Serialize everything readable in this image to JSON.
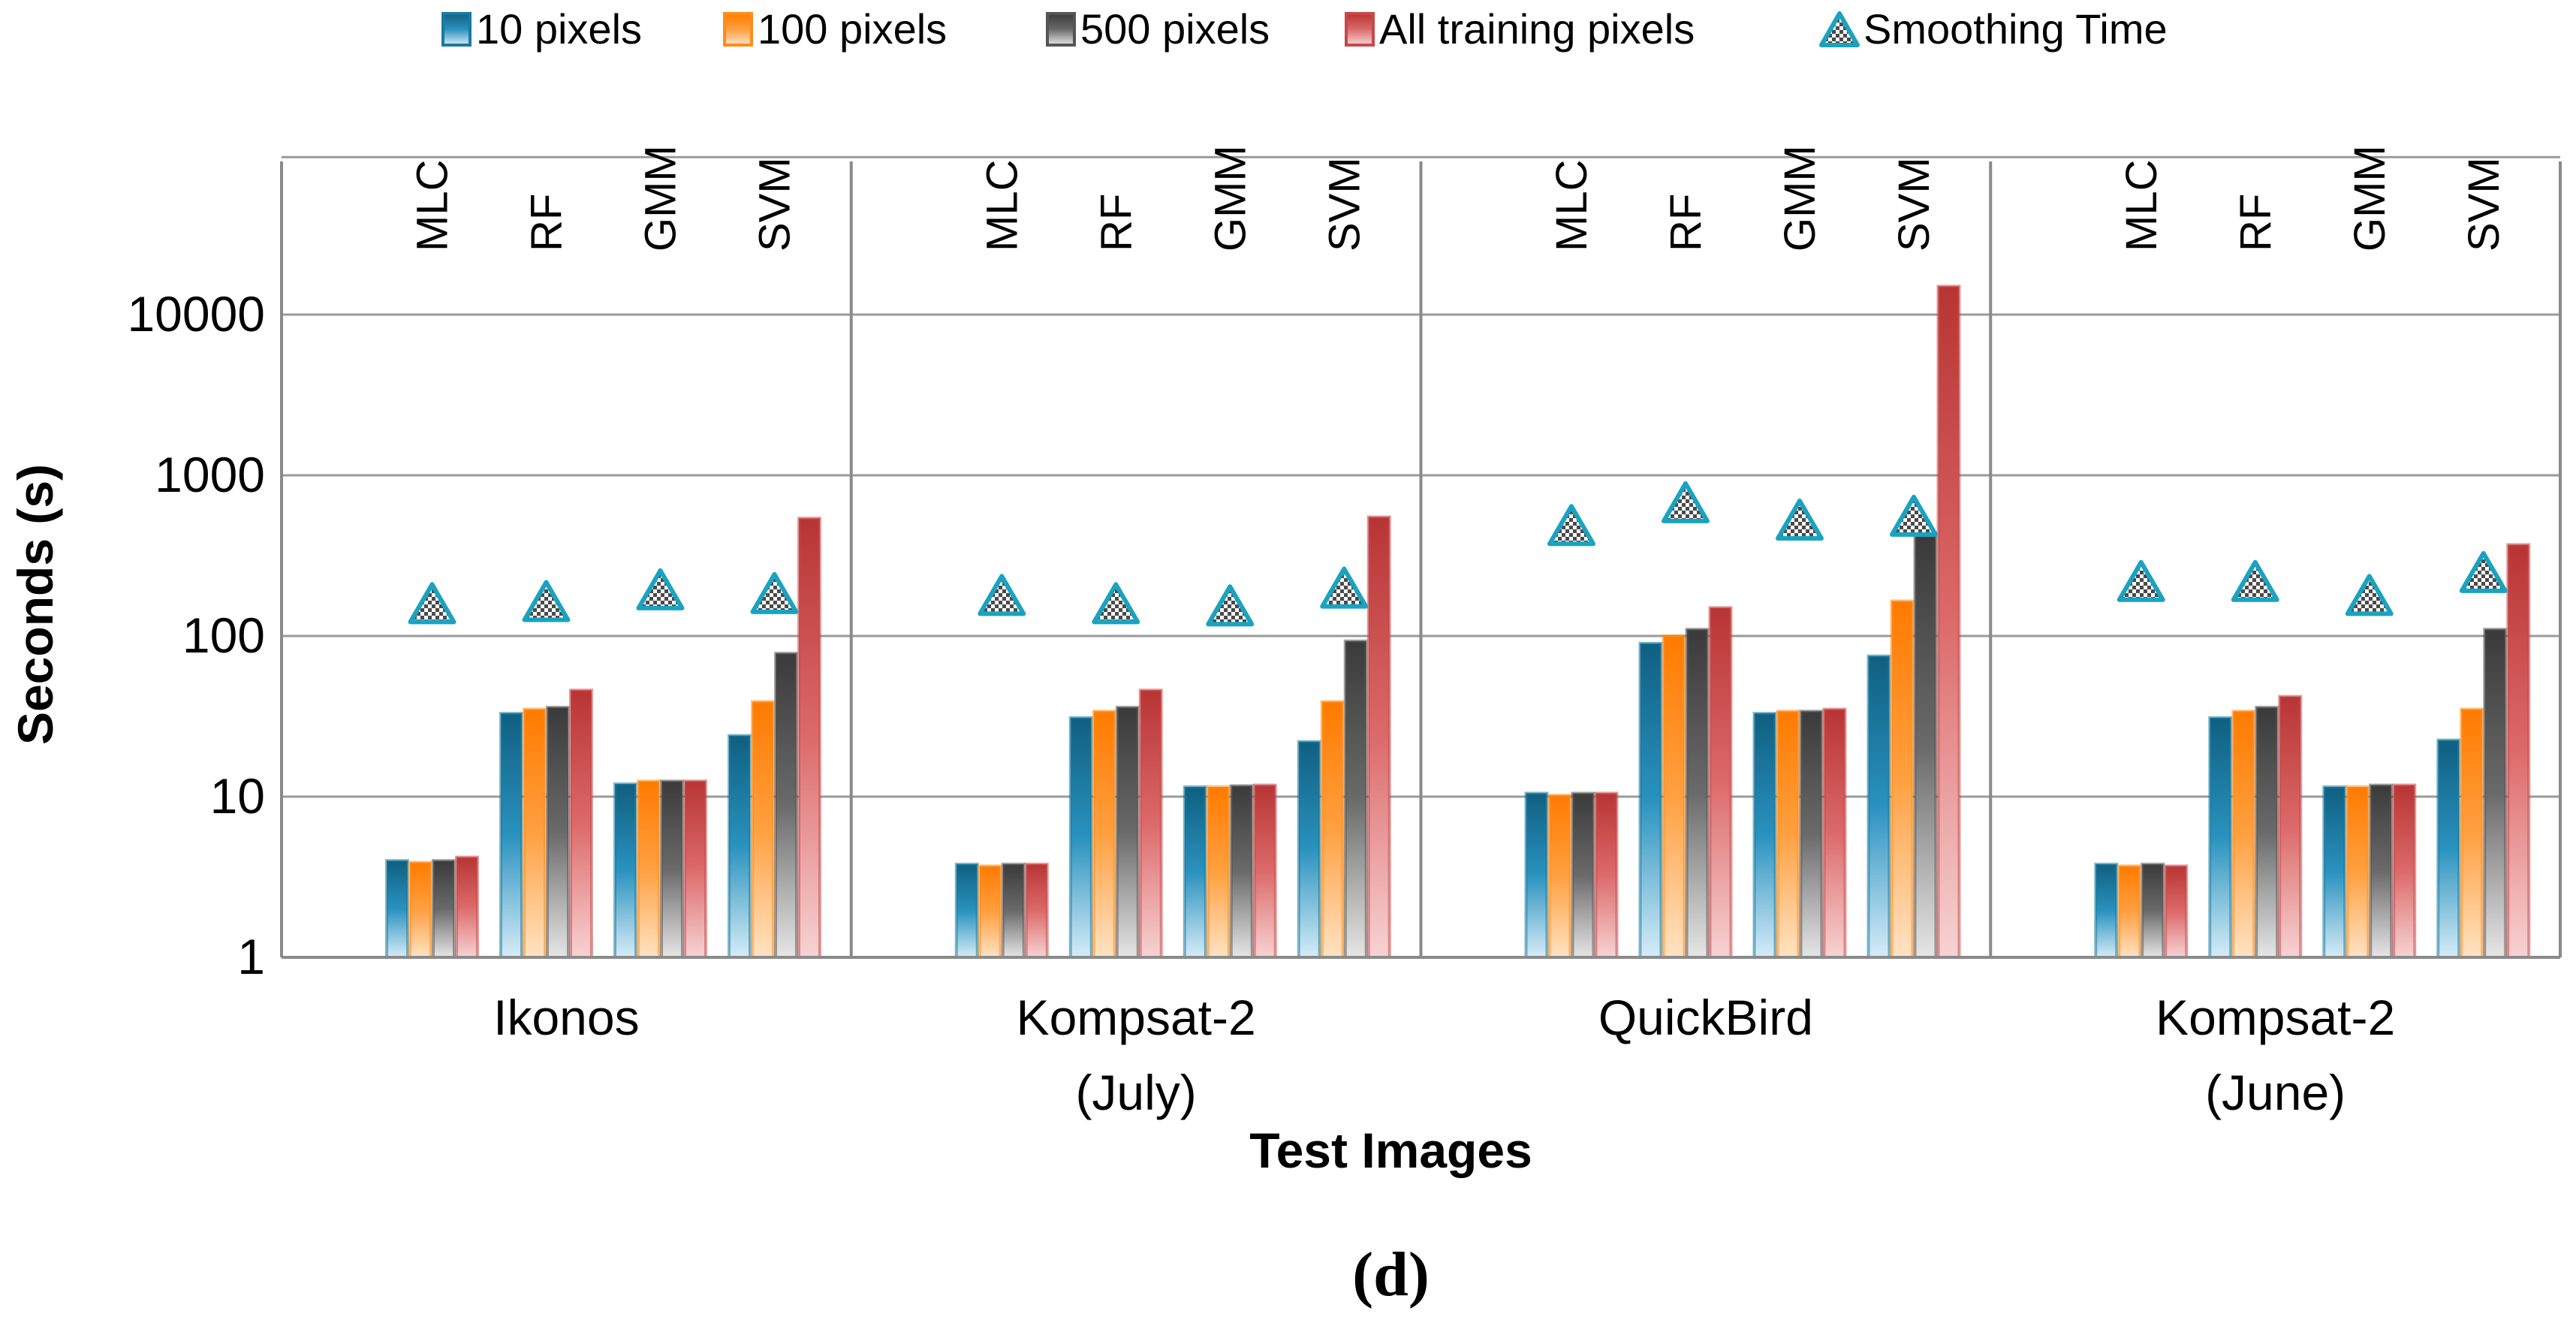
{
  "chart_data": {
    "type": "bar",
    "y_scale": "log",
    "ylim": [
      1,
      100000
    ],
    "yticks": [
      "1",
      "10",
      "100",
      "1000",
      "10000"
    ],
    "ylabel": "Seconds (s)",
    "xlabel": "Test Images",
    "caption": "(d)",
    "groups": [
      {
        "label_lines": [
          "Ikonos"
        ]
      },
      {
        "label_lines": [
          "Kompsat-2",
          "(July)"
        ]
      },
      {
        "label_lines": [
          "QuickBird"
        ]
      },
      {
        "label_lines": [
          "Kompsat-2",
          "(June)"
        ]
      }
    ],
    "methods": [
      "MLC",
      "RF",
      "GMM",
      "SVM"
    ],
    "series": [
      {
        "name": "10 pixels",
        "color": "#1a7a9e",
        "values": [
          [
            4,
            33,
            12,
            24
          ],
          [
            3.8,
            31,
            11.5,
            22
          ],
          [
            10.5,
            90,
            33,
            75
          ],
          [
            3.8,
            31,
            11.5,
            22.5
          ]
        ]
      },
      {
        "name": "100 pixels",
        "color": "#ff8c1a",
        "values": [
          [
            3.9,
            35,
            12.5,
            39
          ],
          [
            3.7,
            34,
            11.5,
            39
          ],
          [
            10.2,
            100,
            34,
            165
          ],
          [
            3.7,
            34,
            11.5,
            35
          ]
        ]
      },
      {
        "name": "500 pixels",
        "color": "#555555",
        "values": [
          [
            4,
            36,
            12.5,
            78
          ],
          [
            3.8,
            36,
            11.7,
            93
          ],
          [
            10.5,
            110,
            34,
            420
          ],
          [
            3.8,
            36,
            11.8,
            110
          ]
        ]
      },
      {
        "name": "All training pixels",
        "color": "#c94848",
        "values": [
          [
            4.2,
            46,
            12.5,
            540
          ],
          [
            3.8,
            46,
            11.8,
            550
          ],
          [
            10.5,
            150,
            35,
            15000
          ],
          [
            3.7,
            42,
            11.8,
            370
          ]
        ]
      }
    ],
    "markers": {
      "name": "Smoothing Time",
      "color": "#1aa3c0",
      "values": [
        [
          160,
          165,
          195,
          185
        ],
        [
          180,
          160,
          155,
          200
        ],
        [
          490,
          680,
          530,
          560
        ],
        [
          220,
          220,
          180,
          250
        ]
      ]
    },
    "legend_position": "top"
  }
}
